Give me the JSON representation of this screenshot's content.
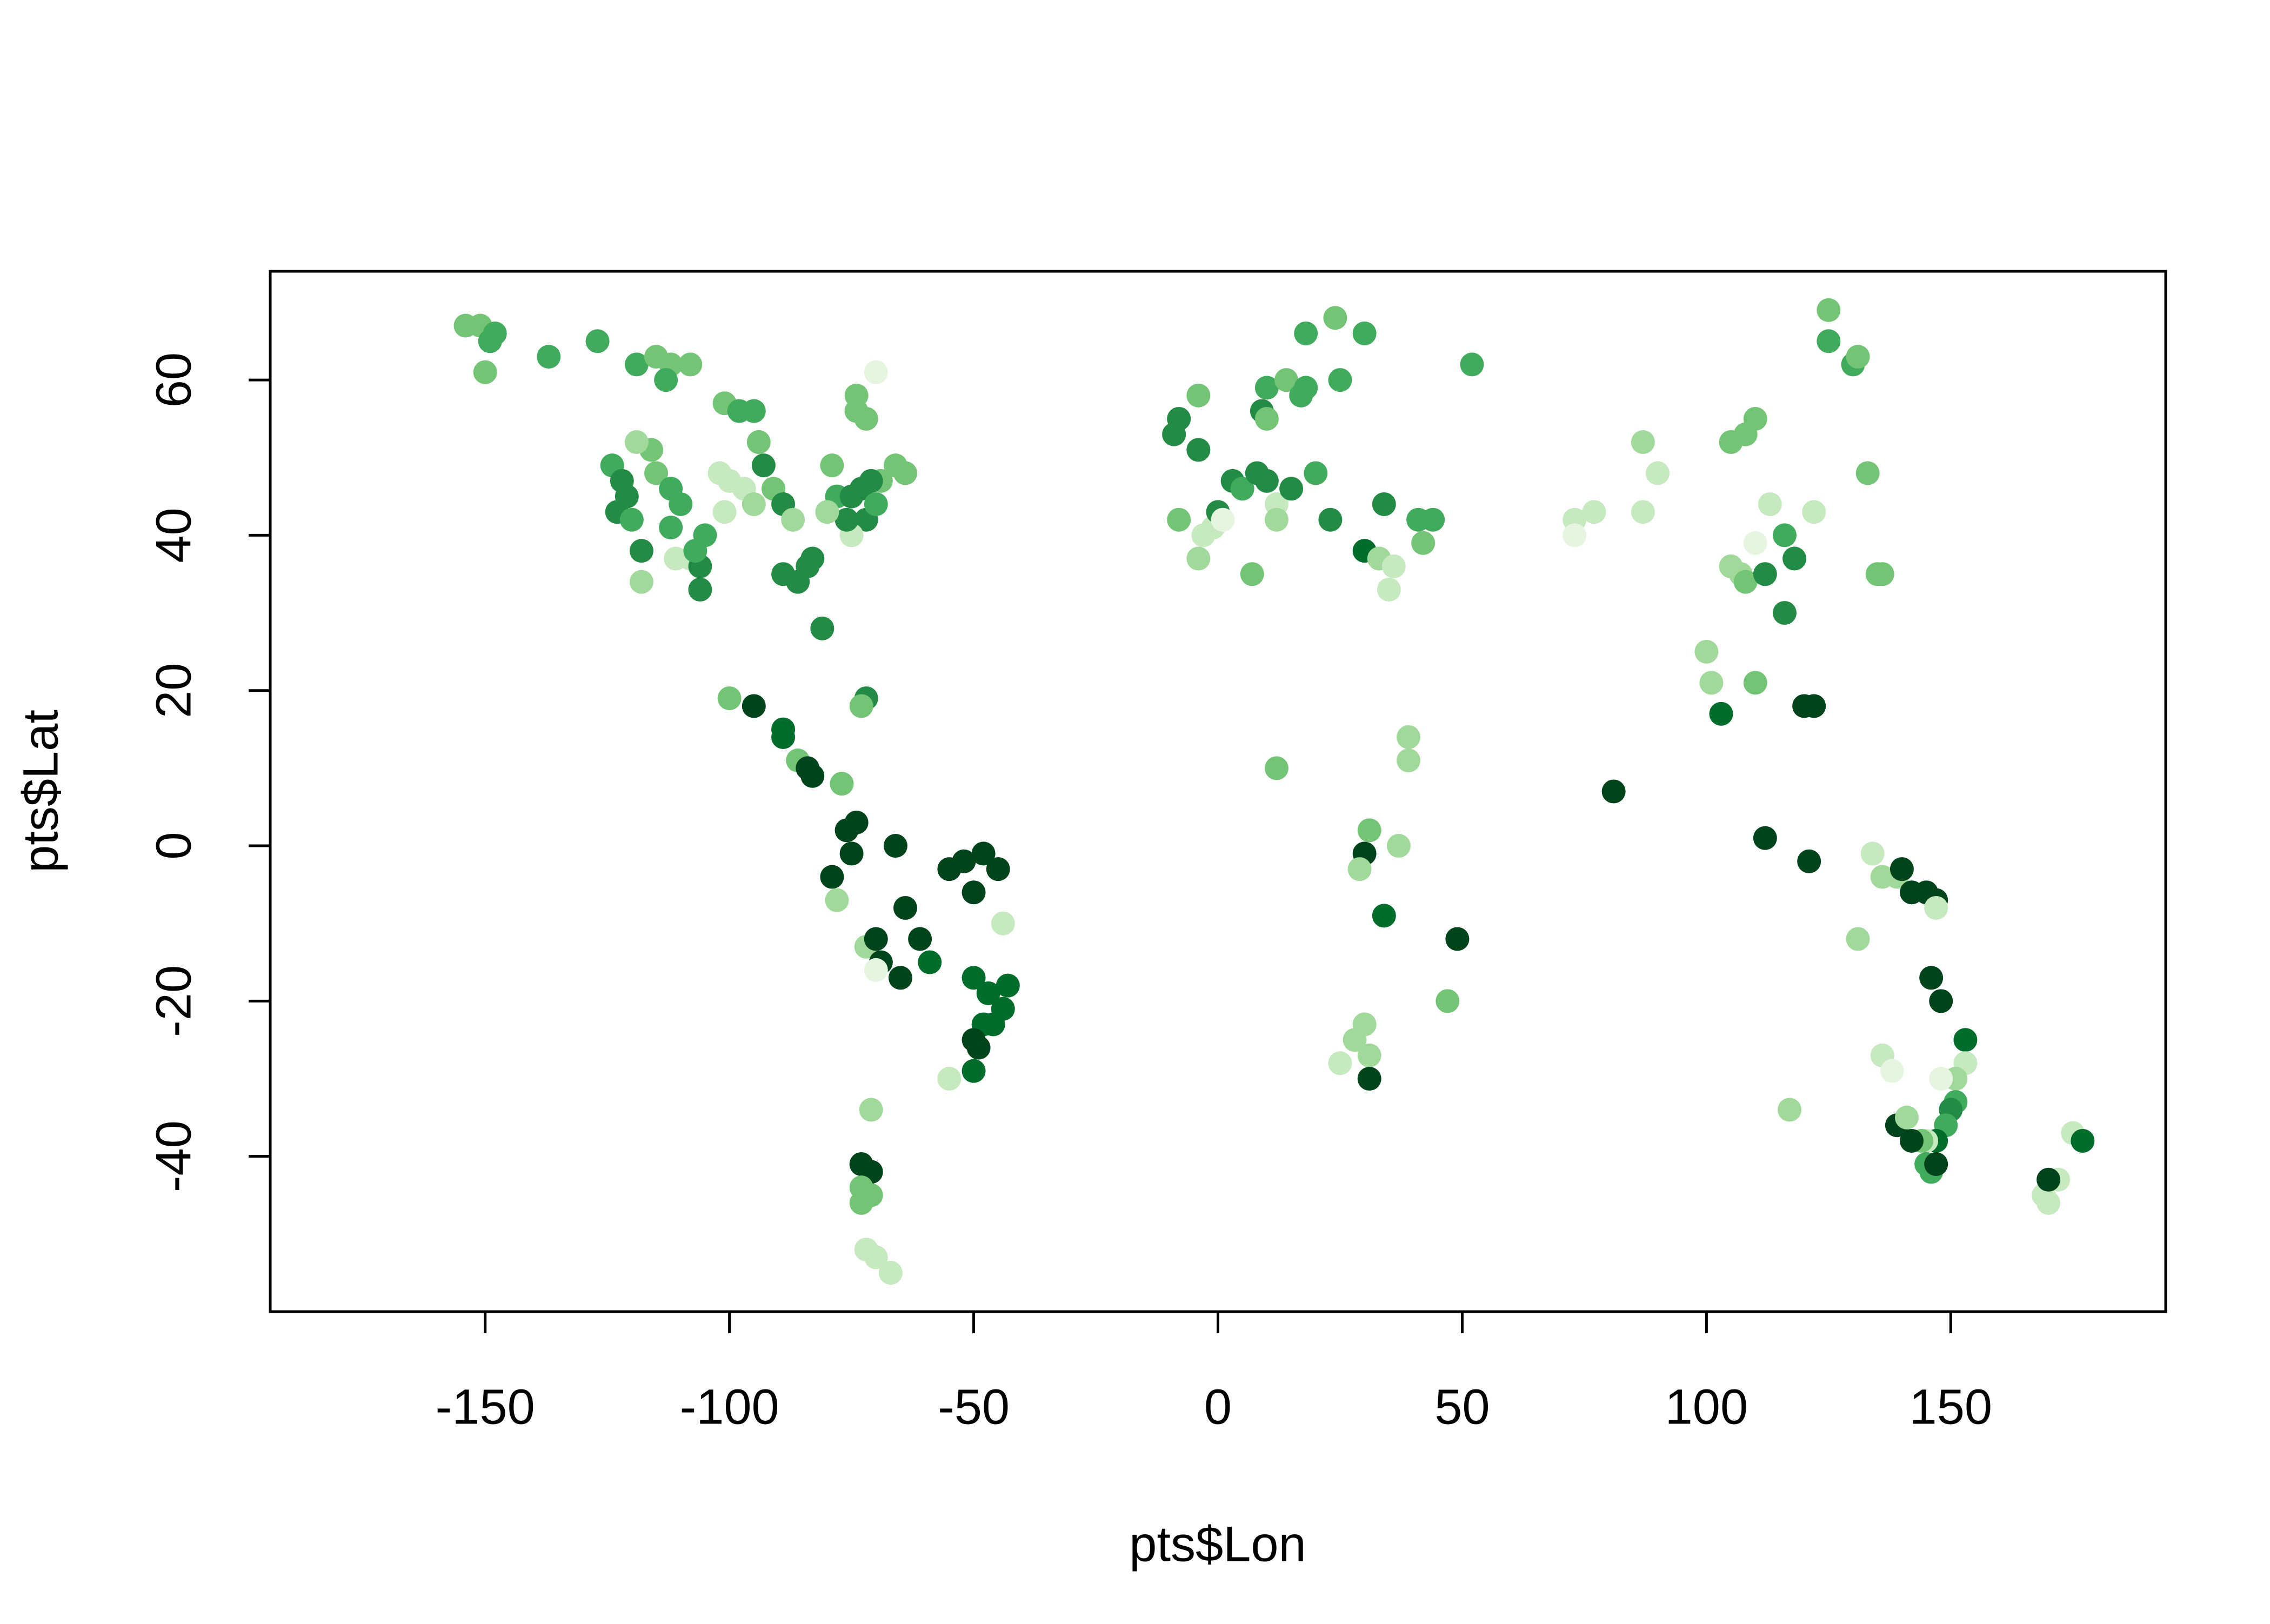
{
  "chart_data": {
    "type": "scatter",
    "xlabel": "pts$Lon",
    "ylabel": "pts$Lat",
    "xlim": [
      -194,
      194
    ],
    "ylim": [
      -60,
      74
    ],
    "xticks": [
      -150,
      -100,
      -50,
      0,
      50,
      100,
      150
    ],
    "yticks": [
      -40,
      -20,
      0,
      20,
      40,
      60
    ],
    "grid": false,
    "x": [
      -154,
      -151,
      -149,
      -148,
      -150,
      -137,
      -127,
      -119,
      -115,
      -112,
      -108,
      -113,
      -124,
      -122,
      -121,
      -123,
      -120,
      -118,
      -118,
      -115,
      -116,
      -119,
      -112,
      -110,
      -112,
      -111,
      -108,
      -106,
      -106,
      -107,
      -105,
      -102,
      -100,
      -101,
      -101,
      -98,
      -95,
      -94,
      -93,
      -97,
      -95,
      -91,
      -89,
      -87,
      -89,
      -86,
      -84,
      -83,
      -81,
      -78,
      -79,
      -75,
      -73,
      -72,
      -70,
      -74,
      -74,
      -72,
      -69,
      -66,
      -64,
      -70,
      -75,
      -76,
      -80,
      -71,
      -100,
      -95,
      -89,
      -89,
      -86,
      -84,
      -83,
      -77,
      -72,
      -73,
      -74,
      -76,
      -75,
      -79,
      -78,
      -72,
      -70,
      -69,
      -70,
      -66,
      -64,
      -65,
      -61,
      -59,
      -55,
      -52,
      -48,
      -45,
      -50,
      -50,
      -47,
      -43,
      -44,
      -46,
      -48,
      -50,
      -49,
      -50,
      -55,
      -44,
      -71,
      -73,
      -71,
      -73,
      -73,
      -71,
      -72,
      -70,
      -67,
      -9,
      -8,
      -4,
      -4,
      -8,
      -3,
      -4,
      -1,
      0,
      1,
      3,
      5,
      8,
      10,
      9,
      10,
      10,
      12,
      12,
      15,
      14,
      17,
      18,
      18,
      24,
      25,
      30,
      20,
      23,
      30,
      34,
      33,
      35,
      36,
      41,
      44,
      42,
      52,
      7,
      12,
      30,
      31,
      29,
      37,
      34,
      39,
      39,
      49,
      47,
      30,
      28,
      31,
      25,
      31,
      73,
      77,
      73,
      87,
      87,
      90,
      81,
      105,
      108,
      110,
      113,
      110,
      122,
      105,
      107,
      108,
      112,
      116,
      118,
      116,
      100,
      101,
      110,
      103,
      120,
      122,
      125,
      125,
      130,
      131,
      133,
      136,
      135,
      112,
      121,
      134,
      136,
      139,
      140,
      142,
      145,
      147,
      147,
      131,
      146,
      148,
      153,
      153,
      151,
      151,
      150,
      149,
      147,
      145,
      144,
      142,
      139,
      141,
      145,
      146,
      147,
      136,
      138,
      117,
      148,
      169,
      170,
      172,
      175,
      177,
      170
    ],
    "y": [
      67,
      67,
      65,
      66,
      61,
      63,
      65,
      62,
      63,
      62,
      62,
      60,
      49,
      47,
      45,
      43,
      42,
      38,
      34,
      48,
      51,
      52,
      46,
      44,
      41,
      37,
      37,
      36,
      33,
      38,
      40,
      48,
      47,
      43,
      57,
      56,
      56,
      52,
      49,
      46,
      44,
      46,
      44,
      42,
      35,
      34,
      36,
      37,
      28,
      45,
      49,
      45,
      46,
      42,
      44,
      56,
      58,
      55,
      47,
      49,
      48,
      61,
      40,
      42,
      43,
      47,
      19,
      18,
      14,
      15,
      11,
      10,
      9,
      8,
      19,
      18,
      3,
      2,
      -1,
      -4,
      -7,
      -13,
      -12,
      -15,
      -16,
      0,
      -8,
      -17,
      -12,
      -15,
      -3,
      -2,
      -1,
      -3,
      -6,
      -17,
      -19,
      -18,
      -21,
      -23,
      -23,
      -25,
      -26,
      -29,
      -30,
      -10,
      -34,
      -41,
      -42,
      -44,
      -46,
      -45,
      -52,
      -53,
      -55,
      53,
      55,
      58,
      51,
      42,
      40,
      37,
      41,
      43,
      42,
      47,
      46,
      48,
      47,
      56,
      59,
      55,
      44,
      42,
      46,
      60,
      58,
      59,
      66,
      68,
      60,
      66,
      48,
      42,
      38,
      44,
      37,
      33,
      36,
      42,
      42,
      39,
      62,
      35,
      10,
      -1,
      2,
      -3,
      0,
      -9,
      14,
      11,
      -12,
      -20,
      -23,
      -25,
      -27,
      -28,
      -30,
      42,
      43,
      40,
      43,
      52,
      48,
      7,
      52,
      53,
      55,
      44,
      39,
      43,
      36,
      35,
      34,
      35,
      40,
      37,
      30,
      25,
      21,
      21,
      17,
      18,
      18,
      69,
      65,
      62,
      63,
      48,
      35,
      35,
      1,
      -2,
      -1,
      -4,
      -4,
      -3,
      -6,
      -6,
      -7,
      -8,
      -12,
      -17,
      -20,
      -25,
      -28,
      -30,
      -33,
      -34,
      -36,
      -38,
      -38,
      -38,
      -38,
      -36,
      -35,
      -41,
      -42,
      -41,
      -27,
      -29,
      -34,
      -30,
      -45,
      -46,
      -43,
      -37,
      -38,
      -43
    ],
    "colors": [
      "#74c476",
      "#74c476",
      "#41ab5d",
      "#41ab5d",
      "#74c476",
      "#41ab5d",
      "#41ab5d",
      "#41ab5d",
      "#74c476",
      "#74c476",
      "#74c476",
      "#41ab5d",
      "#41ab5d",
      "#238b45",
      "#238b45",
      "#238b45",
      "#41ab5d",
      "#238b45",
      "#a1d99b",
      "#74c476",
      "#74c476",
      "#a1d99b",
      "#41ab5d",
      "#41ab5d",
      "#41ab5d",
      "#c7e9c0",
      "#c7e9c0",
      "#238b45",
      "#238b45",
      "#41ab5d",
      "#41ab5d",
      "#c7e9c0",
      "#c7e9c0",
      "#c7e9c0",
      "#74c476",
      "#41ab5d",
      "#41ab5d",
      "#74c476",
      "#238b45",
      "#c7e9c0",
      "#a1d99b",
      "#74c476",
      "#238b45",
      "#a1d99b",
      "#238b45",
      "#238b45",
      "#238b45",
      "#238b45",
      "#238b45",
      "#41ab5d",
      "#74c476",
      "#238b45",
      "#238b45",
      "#238b45",
      "#41ab5d",
      "#74c476",
      "#74c476",
      "#74c476",
      "#74c476",
      "#74c476",
      "#74c476",
      "#e5f5e0",
      "#c7e9c0",
      "#238b45",
      "#a1d99b",
      "#238b45",
      "#74c476",
      "#00441b",
      "#006d2c",
      "#006d2c",
      "#74c476",
      "#00441b",
      "#00441b",
      "#74c476",
      "#238b45",
      "#74c476",
      "#00441b",
      "#00441b",
      "#00441b",
      "#00441b",
      "#a1d99b",
      "#a1d99b",
      "#00441b",
      "#00441b",
      "#e5f5e0",
      "#00441b",
      "#00441b",
      "#00441b",
      "#00441b",
      "#006d2c",
      "#00441b",
      "#00441b",
      "#00441b",
      "#00441b",
      "#00441b",
      "#006d2c",
      "#006d2c",
      "#006d2c",
      "#006d2c",
      "#006d2c",
      "#006d2c",
      "#00441b",
      "#00441b",
      "#006d2c",
      "#c7e9c0",
      "#c7e9c0",
      "#a1d99b",
      "#00441b",
      "#00441b",
      "#74c476",
      "#74c476",
      "#74c476",
      "#c7e9c0",
      "#c7e9c0",
      "#c7e9c0",
      "#238b45",
      "#238b45",
      "#74c476",
      "#238b45",
      "#74c476",
      "#c7e9c0",
      "#a1d99b",
      "#c7e9c0",
      "#238b45",
      "#e5f5e0",
      "#238b45",
      "#41ab5d",
      "#238b45",
      "#238b45",
      "#238b45",
      "#41ab5d",
      "#74c476",
      "#c7e9c0",
      "#a1d99b",
      "#238b45",
      "#74c476",
      "#41ab5d",
      "#41ab5d",
      "#41ab5d",
      "#74c476",
      "#41ab5d",
      "#41ab5d",
      "#41ab5d",
      "#238b45",
      "#006d2c",
      "#238b45",
      "#a1d99b",
      "#c7e9c0",
      "#c7e9c0",
      "#41ab5d",
      "#41ab5d",
      "#74c476",
      "#41ab5d",
      "#74c476",
      "#74c476",
      "#00441b",
      "#74c476",
      "#a1d99b",
      "#a1d99b",
      "#006d2c",
      "#a1d99b",
      "#a1d99b",
      "#00441b",
      "#74c476",
      "#a1d99b",
      "#a1d99b",
      "#a1d99b",
      "#c7e9c0",
      "#00441b",
      "#c7e9c0",
      "#c7e9c0",
      "#e5f5e0",
      "#c7e9c0",
      "#a1d99b",
      "#c7e9c0",
      "#00441b",
      "#74c476",
      "#74c476",
      "#74c476",
      "#c7e9c0",
      "#e5f5e0",
      "#c7e9c0",
      "#a1d99b",
      "#a1d99b",
      "#74c476",
      "#238b45",
      "#41ab5d",
      "#238b45",
      "#238b45",
      "#a1d99b",
      "#a1d99b",
      "#74c476",
      "#006d2c",
      "#00441b",
      "#00441b",
      "#74c476",
      "#41ab5d",
      "#41ab5d",
      "#74c476",
      "#74c476",
      "#74c476",
      "#74c476",
      "#00441b",
      "#00441b",
      "#c7e9c0",
      "#a1d99b",
      "#a1d99b",
      "#00441b",
      "#00441b",
      "#00441b",
      "#00441b",
      "#c7e9c0",
      "#a1d99b",
      "#00441b",
      "#00441b",
      "#006d2c",
      "#c7e9c0",
      "#a1d99b",
      "#41ab5d",
      "#238b45",
      "#41ab5d",
      "#006d2c",
      "#c7e9c0",
      "#74c476",
      "#00441b",
      "#00441b",
      "#a1d99b",
      "#41ab5d",
      "#41ab5d",
      "#00441b",
      "#c7e9c0",
      "#e5f5e0",
      "#a1d99b",
      "#e5f5e0",
      "#c7e9c0",
      "#c7e9c0",
      "#c7e9c0",
      "#c7e9c0",
      "#006d2c",
      "#00441b"
    ]
  }
}
